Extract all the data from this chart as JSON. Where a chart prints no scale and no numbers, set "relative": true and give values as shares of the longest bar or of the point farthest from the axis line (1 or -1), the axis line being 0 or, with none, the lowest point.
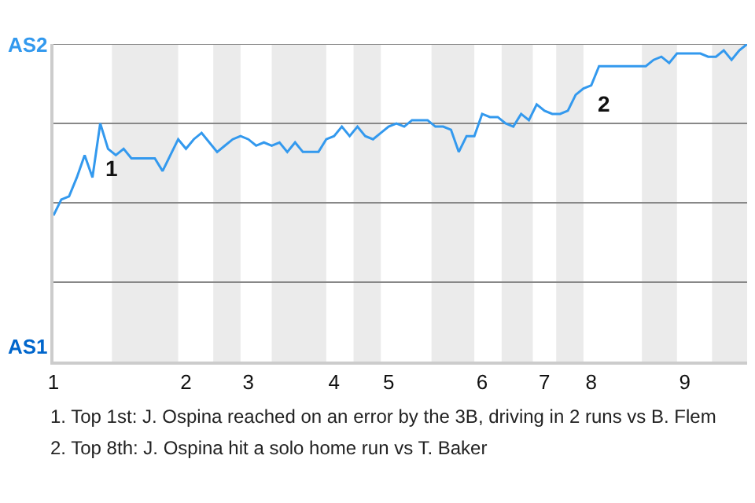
{
  "chart_data": {
    "type": "line",
    "relative": true,
    "categories": [
      "1",
      null,
      null,
      null,
      null,
      null,
      null,
      null,
      null,
      null,
      null,
      null,
      null,
      null,
      null,
      null,
      null,
      "2",
      null,
      null,
      null,
      null,
      null,
      null,
      null,
      "3",
      null,
      null,
      null,
      null,
      null,
      null,
      null,
      null,
      null,
      null,
      "4",
      null,
      null,
      null,
      null,
      null,
      null,
      "5",
      null,
      null,
      null,
      null,
      null,
      null,
      null,
      null,
      null,
      null,
      null,
      "6",
      null,
      null,
      null,
      null,
      null,
      null,
      null,
      "7",
      null,
      null,
      null,
      null,
      null,
      "8",
      null,
      null,
      null,
      null,
      null,
      null,
      null,
      null,
      null,
      null,
      null,
      "9",
      null,
      null,
      null,
      null,
      null,
      null,
      null,
      null
    ],
    "series": [
      {
        "color": "#3399ee",
        "values": [
          0.46,
          0.51,
          0.52,
          0.58,
          0.65,
          0.58,
          0.75,
          0.67,
          0.65,
          0.67,
          0.64,
          0.64,
          0.64,
          0.64,
          0.6,
          0.65,
          0.7,
          0.67,
          0.7,
          0.72,
          0.69,
          0.66,
          0.68,
          0.7,
          0.71,
          0.7,
          0.68,
          0.69,
          0.68,
          0.69,
          0.66,
          0.69,
          0.66,
          0.66,
          0.66,
          0.7,
          0.71,
          0.74,
          0.71,
          0.74,
          0.71,
          0.7,
          0.72,
          0.74,
          0.75,
          0.74,
          0.76,
          0.76,
          0.76,
          0.74,
          0.74,
          0.73,
          0.66,
          0.71,
          0.71,
          0.78,
          0.77,
          0.77,
          0.75,
          0.74,
          0.78,
          0.76,
          0.81,
          0.79,
          0.78,
          0.78,
          0.79,
          0.84,
          0.86,
          0.87,
          0.93,
          0.93,
          0.93,
          0.93,
          0.93,
          0.93,
          0.93,
          0.95,
          0.96,
          0.94,
          0.97,
          0.97,
          0.97,
          0.97,
          0.96,
          0.96,
          0.98,
          0.95,
          0.98,
          1
        ]
      }
    ],
    "grid": false,
    "marker": "none",
    "line_style": "solid",
    "ref_lines": [
      {
        "axis": "y",
        "value": 0.25,
        "color": "#888888"
      },
      {
        "axis": "y",
        "value": 0.5,
        "color": "#888888"
      },
      {
        "axis": "y",
        "value": 0.75,
        "color": "#888888"
      },
      {
        "axis": "y",
        "value": 1,
        "color": "#888888"
      }
    ],
    "annotations": [
      "AS2",
      "AS1",
      "1",
      "2",
      "1. Top 1st: J. Ospina reached on an error by the 3B, driving in 2 runs vs B. Flem",
      "2. Top 8th: J. Ospina hit a solo home run vs T. Baker"
    ]
  }
}
